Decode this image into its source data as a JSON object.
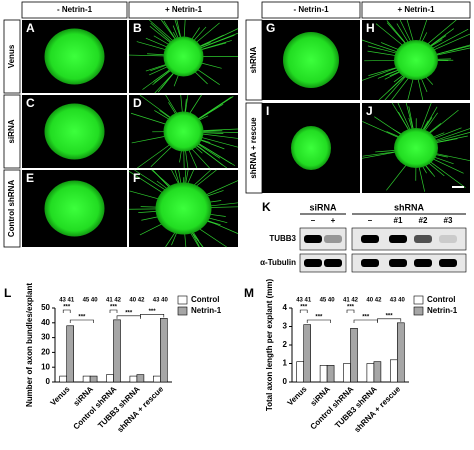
{
  "figure": {
    "left_headers": [
      "- Netrin-1",
      "+ Netrin-1"
    ],
    "right_headers": [
      "- Netrin-1",
      "+ Netrin-1"
    ],
    "row_labels_left": [
      "Venus",
      "siRNA",
      "Control shRNA"
    ],
    "row_labels_right": [
      "shRNA",
      "shRNA + rescue"
    ],
    "panel_letters": [
      "A",
      "B",
      "C",
      "D",
      "E",
      "F",
      "G",
      "H",
      "I",
      "J"
    ]
  },
  "blot": {
    "letter": "K",
    "groups": [
      "siRNA",
      "shRNA"
    ],
    "lanes": [
      "–",
      "+",
      "–",
      "#1",
      "#2",
      "#3"
    ],
    "rows": [
      "TUBB3",
      "α-Tubulin"
    ]
  },
  "chart_data": [
    {
      "type": "bar",
      "panel": "L",
      "y_label": "Number of axon bundles/explant",
      "categories": [
        "Venus",
        "siRNA",
        "Control shRNA",
        "TUBB3 shRNA",
        "shRNA + rescue"
      ],
      "series": [
        {
          "name": "Control",
          "color": "#ffffff",
          "values": [
            4,
            4,
            5,
            4,
            4
          ]
        },
        {
          "name": "Netrin-1",
          "color": "#a6a6a6",
          "values": [
            38,
            4,
            42,
            5,
            43
          ]
        }
      ],
      "ylim": [
        0,
        50
      ],
      "yticks": [
        0,
        10,
        20,
        30,
        40,
        50
      ],
      "n_labels": [
        "43 41",
        "45 40",
        "41 42",
        "40 42",
        "43 40"
      ],
      "annotations": [
        "***",
        "***",
        "***",
        "***",
        "***"
      ]
    },
    {
      "type": "bar",
      "panel": "M",
      "y_label": "Total axon length per explant (mm)",
      "categories": [
        "Venus",
        "siRNA",
        "Control shRNA",
        "TUBB3 shRNA",
        "shRNA + rescue"
      ],
      "series": [
        {
          "name": "Control",
          "color": "#ffffff",
          "values": [
            1.1,
            0.9,
            1.0,
            1.0,
            1.2
          ]
        },
        {
          "name": "Netrin-1",
          "color": "#a6a6a6",
          "values": [
            3.1,
            0.9,
            2.9,
            1.1,
            3.2
          ]
        }
      ],
      "ylim": [
        0,
        4
      ],
      "yticks": [
        0,
        1,
        2,
        3,
        4
      ],
      "n_labels": [
        "43 41",
        "45 40",
        "41 42",
        "40 42",
        "43 40"
      ],
      "annotations": [
        "***",
        "***",
        "***",
        "***",
        "***"
      ]
    }
  ]
}
